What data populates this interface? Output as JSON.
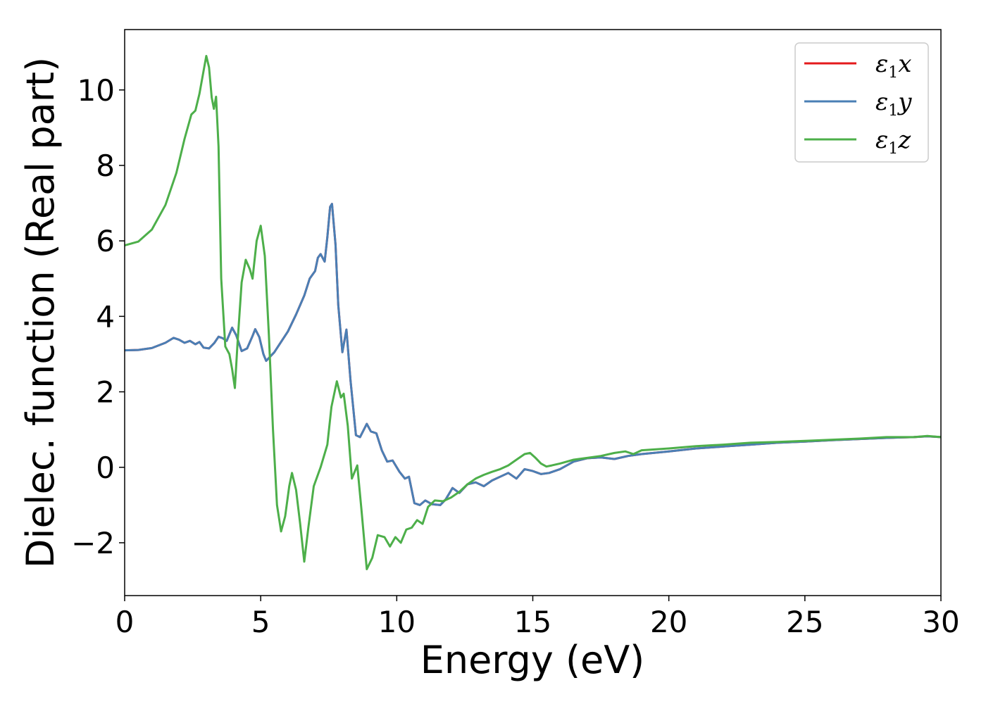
{
  "chart_data": {
    "type": "line",
    "xlabel": "Energy (eV)",
    "ylabel": "Dielec. function (Real part)",
    "xlim": [
      0,
      30
    ],
    "ylim": [
      -3.4,
      11.6
    ],
    "x_ticks": [
      0,
      5,
      10,
      15,
      20,
      25,
      30
    ],
    "x_tick_labels": [
      "0",
      "5",
      "10",
      "15",
      "20",
      "25",
      "30"
    ],
    "y_ticks": [
      -2,
      0,
      2,
      4,
      6,
      8,
      10
    ],
    "y_tick_labels": [
      "−2",
      "0",
      "2",
      "4",
      "6",
      "8",
      "10"
    ],
    "grid": false,
    "legend": {
      "position": "top-right"
    },
    "series": [
      {
        "name": "ε1x",
        "name_parts": {
          "base": "ε",
          "sub": "1",
          "axis": "x"
        },
        "color": "#e41a1c",
        "points": [
          [
            0,
            3.1
          ],
          [
            0.5,
            3.11
          ],
          [
            1.0,
            3.16
          ],
          [
            1.5,
            3.3
          ],
          [
            1.8,
            3.43
          ],
          [
            2.0,
            3.38
          ],
          [
            2.2,
            3.3
          ],
          [
            2.4,
            3.35
          ],
          [
            2.6,
            3.26
          ],
          [
            2.75,
            3.32
          ],
          [
            2.9,
            3.17
          ],
          [
            3.1,
            3.15
          ],
          [
            3.3,
            3.3
          ],
          [
            3.45,
            3.46
          ],
          [
            3.6,
            3.42
          ],
          [
            3.75,
            3.35
          ],
          [
            3.95,
            3.7
          ],
          [
            4.1,
            3.5
          ],
          [
            4.3,
            3.08
          ],
          [
            4.5,
            3.15
          ],
          [
            4.7,
            3.48
          ],
          [
            4.8,
            3.66
          ],
          [
            4.95,
            3.45
          ],
          [
            5.1,
            3.0
          ],
          [
            5.2,
            2.82
          ],
          [
            5.5,
            3.05
          ],
          [
            5.8,
            3.38
          ],
          [
            6.0,
            3.6
          ],
          [
            6.3,
            4.05
          ],
          [
            6.6,
            4.55
          ],
          [
            6.8,
            5.0
          ],
          [
            7.0,
            5.2
          ],
          [
            7.1,
            5.55
          ],
          [
            7.2,
            5.65
          ],
          [
            7.35,
            5.45
          ],
          [
            7.45,
            6.1
          ],
          [
            7.55,
            6.9
          ],
          [
            7.62,
            6.98
          ],
          [
            7.75,
            5.9
          ],
          [
            7.85,
            4.3
          ],
          [
            8.0,
            3.05
          ],
          [
            8.15,
            3.65
          ],
          [
            8.3,
            2.3
          ],
          [
            8.5,
            0.85
          ],
          [
            8.65,
            0.8
          ],
          [
            8.9,
            1.15
          ],
          [
            9.05,
            0.95
          ],
          [
            9.25,
            0.9
          ],
          [
            9.45,
            0.45
          ],
          [
            9.65,
            0.15
          ],
          [
            9.85,
            0.18
          ],
          [
            10.1,
            -0.12
          ],
          [
            10.3,
            -0.3
          ],
          [
            10.45,
            -0.25
          ],
          [
            10.65,
            -0.95
          ],
          [
            10.85,
            -1.0
          ],
          [
            11.05,
            -0.88
          ],
          [
            11.3,
            -0.98
          ],
          [
            11.6,
            -1.0
          ],
          [
            11.8,
            -0.85
          ],
          [
            12.05,
            -0.55
          ],
          [
            12.3,
            -0.68
          ],
          [
            12.6,
            -0.45
          ],
          [
            12.9,
            -0.4
          ],
          [
            13.2,
            -0.5
          ],
          [
            13.5,
            -0.35
          ],
          [
            13.8,
            -0.25
          ],
          [
            14.1,
            -0.15
          ],
          [
            14.4,
            -0.3
          ],
          [
            14.7,
            -0.05
          ],
          [
            15.0,
            -0.1
          ],
          [
            15.3,
            -0.18
          ],
          [
            15.6,
            -0.15
          ],
          [
            16.0,
            -0.05
          ],
          [
            16.5,
            0.15
          ],
          [
            17.0,
            0.24
          ],
          [
            17.5,
            0.26
          ],
          [
            18.0,
            0.22
          ],
          [
            18.5,
            0.3
          ],
          [
            19.0,
            0.35
          ],
          [
            20.0,
            0.42
          ],
          [
            21.0,
            0.5
          ],
          [
            22.0,
            0.55
          ],
          [
            23.0,
            0.6
          ],
          [
            24.0,
            0.65
          ],
          [
            25.0,
            0.68
          ],
          [
            26.0,
            0.72
          ],
          [
            27.0,
            0.75
          ],
          [
            28.0,
            0.78
          ],
          [
            29.0,
            0.8
          ],
          [
            29.5,
            0.82
          ],
          [
            30.0,
            0.8
          ]
        ]
      },
      {
        "name": "ε1y",
        "name_parts": {
          "base": "ε",
          "sub": "1",
          "axis": "y"
        },
        "color": "#4a7fb5",
        "points": [
          [
            0,
            3.1
          ],
          [
            0.5,
            3.11
          ],
          [
            1.0,
            3.16
          ],
          [
            1.5,
            3.3
          ],
          [
            1.8,
            3.43
          ],
          [
            2.0,
            3.38
          ],
          [
            2.2,
            3.3
          ],
          [
            2.4,
            3.35
          ],
          [
            2.6,
            3.26
          ],
          [
            2.75,
            3.32
          ],
          [
            2.9,
            3.17
          ],
          [
            3.1,
            3.15
          ],
          [
            3.3,
            3.3
          ],
          [
            3.45,
            3.46
          ],
          [
            3.6,
            3.42
          ],
          [
            3.75,
            3.35
          ],
          [
            3.95,
            3.7
          ],
          [
            4.1,
            3.5
          ],
          [
            4.3,
            3.08
          ],
          [
            4.5,
            3.15
          ],
          [
            4.7,
            3.48
          ],
          [
            4.8,
            3.66
          ],
          [
            4.95,
            3.45
          ],
          [
            5.1,
            3.0
          ],
          [
            5.2,
            2.82
          ],
          [
            5.5,
            3.05
          ],
          [
            5.8,
            3.38
          ],
          [
            6.0,
            3.6
          ],
          [
            6.3,
            4.05
          ],
          [
            6.6,
            4.55
          ],
          [
            6.8,
            5.0
          ],
          [
            7.0,
            5.2
          ],
          [
            7.1,
            5.55
          ],
          [
            7.2,
            5.65
          ],
          [
            7.35,
            5.45
          ],
          [
            7.45,
            6.1
          ],
          [
            7.55,
            6.9
          ],
          [
            7.62,
            6.98
          ],
          [
            7.75,
            5.9
          ],
          [
            7.85,
            4.3
          ],
          [
            8.0,
            3.05
          ],
          [
            8.15,
            3.65
          ],
          [
            8.3,
            2.3
          ],
          [
            8.5,
            0.85
          ],
          [
            8.65,
            0.8
          ],
          [
            8.9,
            1.15
          ],
          [
            9.05,
            0.95
          ],
          [
            9.25,
            0.9
          ],
          [
            9.45,
            0.45
          ],
          [
            9.65,
            0.15
          ],
          [
            9.85,
            0.18
          ],
          [
            10.1,
            -0.12
          ],
          [
            10.3,
            -0.3
          ],
          [
            10.45,
            -0.25
          ],
          [
            10.65,
            -0.95
          ],
          [
            10.85,
            -1.0
          ],
          [
            11.05,
            -0.88
          ],
          [
            11.3,
            -0.98
          ],
          [
            11.6,
            -1.0
          ],
          [
            11.8,
            -0.85
          ],
          [
            12.05,
            -0.55
          ],
          [
            12.3,
            -0.68
          ],
          [
            12.6,
            -0.45
          ],
          [
            12.9,
            -0.4
          ],
          [
            13.2,
            -0.5
          ],
          [
            13.5,
            -0.35
          ],
          [
            13.8,
            -0.25
          ],
          [
            14.1,
            -0.15
          ],
          [
            14.4,
            -0.3
          ],
          [
            14.7,
            -0.05
          ],
          [
            15.0,
            -0.1
          ],
          [
            15.3,
            -0.18
          ],
          [
            15.6,
            -0.15
          ],
          [
            16.0,
            -0.05
          ],
          [
            16.5,
            0.15
          ],
          [
            17.0,
            0.24
          ],
          [
            17.5,
            0.26
          ],
          [
            18.0,
            0.22
          ],
          [
            18.5,
            0.3
          ],
          [
            19.0,
            0.35
          ],
          [
            20.0,
            0.42
          ],
          [
            21.0,
            0.5
          ],
          [
            22.0,
            0.55
          ],
          [
            23.0,
            0.6
          ],
          [
            24.0,
            0.65
          ],
          [
            25.0,
            0.68
          ],
          [
            26.0,
            0.72
          ],
          [
            27.0,
            0.75
          ],
          [
            28.0,
            0.78
          ],
          [
            29.0,
            0.8
          ],
          [
            29.5,
            0.82
          ],
          [
            30.0,
            0.8
          ]
        ]
      },
      {
        "name": "ε1z",
        "name_parts": {
          "base": "ε",
          "sub": "1",
          "axis": "z"
        },
        "color": "#4daf4a",
        "points": [
          [
            0,
            5.88
          ],
          [
            0.5,
            5.98
          ],
          [
            1.0,
            6.3
          ],
          [
            1.5,
            6.95
          ],
          [
            1.9,
            7.8
          ],
          [
            2.2,
            8.7
          ],
          [
            2.45,
            9.35
          ],
          [
            2.6,
            9.45
          ],
          [
            2.75,
            9.9
          ],
          [
            2.9,
            10.5
          ],
          [
            3.0,
            10.9
          ],
          [
            3.1,
            10.6
          ],
          [
            3.2,
            9.8
          ],
          [
            3.28,
            9.5
          ],
          [
            3.36,
            9.82
          ],
          [
            3.45,
            8.5
          ],
          [
            3.55,
            5.0
          ],
          [
            3.7,
            3.2
          ],
          [
            3.85,
            3.0
          ],
          [
            3.95,
            2.6
          ],
          [
            4.05,
            2.1
          ],
          [
            4.15,
            3.3
          ],
          [
            4.3,
            4.9
          ],
          [
            4.45,
            5.5
          ],
          [
            4.6,
            5.25
          ],
          [
            4.7,
            5.0
          ],
          [
            4.85,
            6.0
          ],
          [
            5.0,
            6.4
          ],
          [
            5.15,
            5.6
          ],
          [
            5.3,
            3.5
          ],
          [
            5.45,
            1.0
          ],
          [
            5.6,
            -1.0
          ],
          [
            5.75,
            -1.7
          ],
          [
            5.9,
            -1.3
          ],
          [
            6.05,
            -0.5
          ],
          [
            6.15,
            -0.15
          ],
          [
            6.3,
            -0.6
          ],
          [
            6.45,
            -1.5
          ],
          [
            6.6,
            -2.5
          ],
          [
            6.75,
            -1.6
          ],
          [
            6.95,
            -0.5
          ],
          [
            7.2,
            0.0
          ],
          [
            7.45,
            0.6
          ],
          [
            7.6,
            1.6
          ],
          [
            7.8,
            2.28
          ],
          [
            7.95,
            1.85
          ],
          [
            8.05,
            1.95
          ],
          [
            8.2,
            1.1
          ],
          [
            8.35,
            -0.3
          ],
          [
            8.55,
            0.05
          ],
          [
            8.7,
            -1.1
          ],
          [
            8.9,
            -2.7
          ],
          [
            9.1,
            -2.4
          ],
          [
            9.3,
            -1.8
          ],
          [
            9.55,
            -1.85
          ],
          [
            9.75,
            -2.1
          ],
          [
            9.95,
            -1.85
          ],
          [
            10.15,
            -2.0
          ],
          [
            10.35,
            -1.65
          ],
          [
            10.55,
            -1.6
          ],
          [
            10.75,
            -1.4
          ],
          [
            10.95,
            -1.5
          ],
          [
            11.15,
            -1.05
          ],
          [
            11.4,
            -0.88
          ],
          [
            11.7,
            -0.9
          ],
          [
            12.0,
            -0.8
          ],
          [
            12.3,
            -0.65
          ],
          [
            12.6,
            -0.45
          ],
          [
            12.9,
            -0.3
          ],
          [
            13.2,
            -0.2
          ],
          [
            13.5,
            -0.12
          ],
          [
            13.8,
            -0.05
          ],
          [
            14.1,
            0.05
          ],
          [
            14.4,
            0.2
          ],
          [
            14.7,
            0.35
          ],
          [
            14.9,
            0.38
          ],
          [
            15.1,
            0.25
          ],
          [
            15.3,
            0.1
          ],
          [
            15.5,
            0.02
          ],
          [
            15.7,
            0.05
          ],
          [
            16.0,
            0.1
          ],
          [
            16.5,
            0.2
          ],
          [
            17.0,
            0.25
          ],
          [
            17.5,
            0.3
          ],
          [
            18.0,
            0.38
          ],
          [
            18.4,
            0.42
          ],
          [
            18.7,
            0.35
          ],
          [
            19.0,
            0.45
          ],
          [
            20.0,
            0.5
          ],
          [
            21.0,
            0.56
          ],
          [
            22.0,
            0.6
          ],
          [
            23.0,
            0.65
          ],
          [
            24.0,
            0.67
          ],
          [
            25.0,
            0.7
          ],
          [
            26.0,
            0.73
          ],
          [
            27.0,
            0.76
          ],
          [
            28.0,
            0.8
          ],
          [
            29.0,
            0.8
          ],
          [
            29.5,
            0.83
          ],
          [
            30.0,
            0.8
          ]
        ]
      }
    ]
  }
}
